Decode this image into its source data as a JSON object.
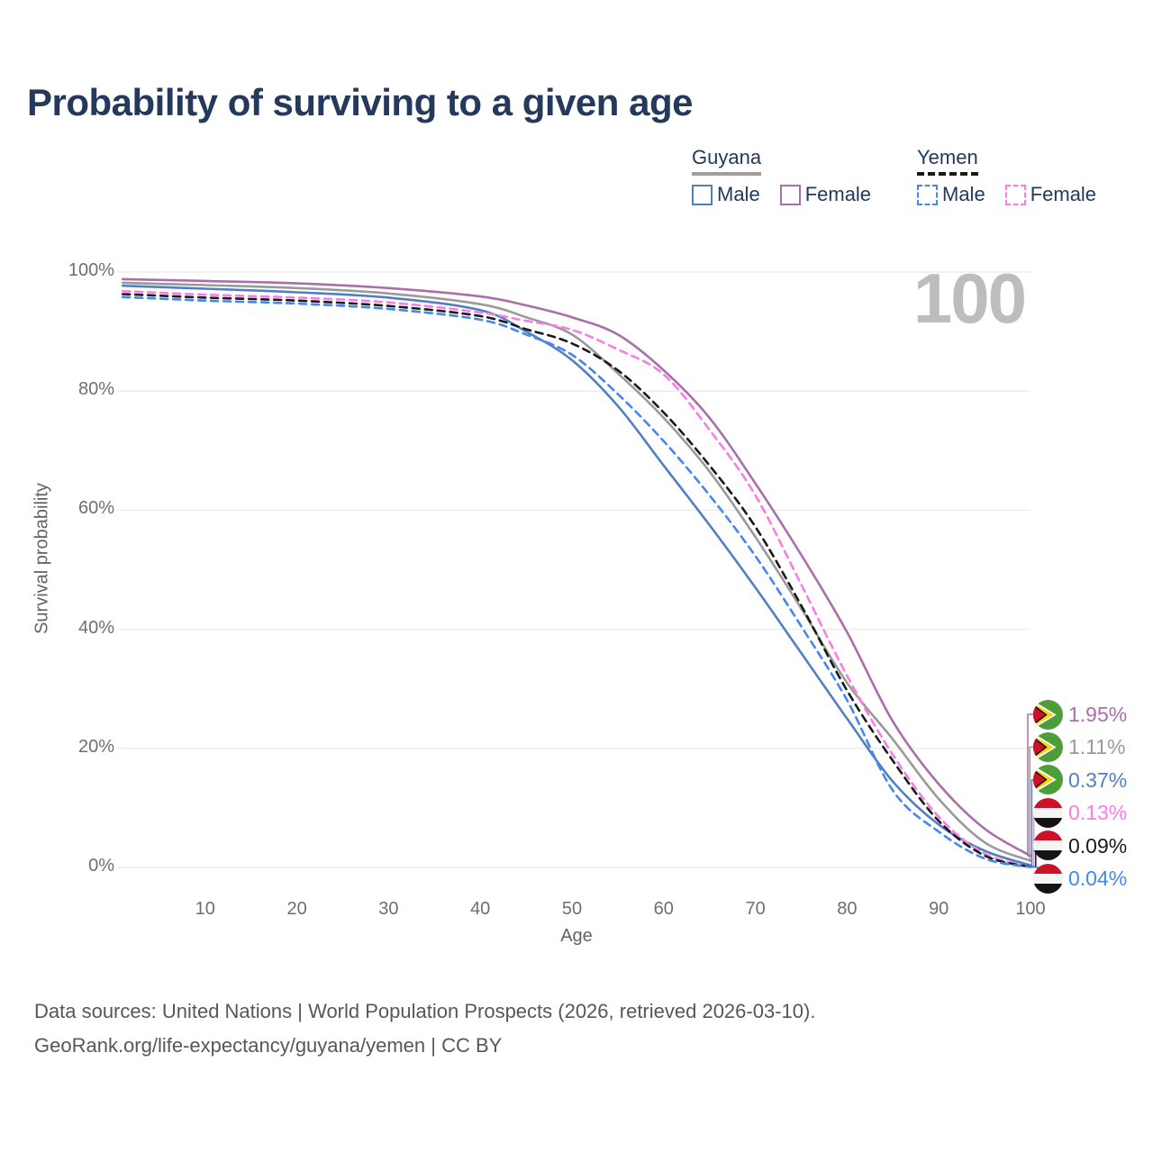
{
  "title": "Probability of surviving to a given age",
  "watermark_age": "100",
  "legend": {
    "groups": [
      {
        "country": "Guyana",
        "underline_style": "solid",
        "underline_color": "#9e9e9e",
        "items": [
          {
            "label": "Male",
            "color": "#5180c1",
            "dashed": false
          },
          {
            "label": "Female",
            "color": "#a96fa9",
            "dashed": false
          }
        ]
      },
      {
        "country": "Yemen",
        "underline_style": "dashed",
        "underline_color": "#1a1a1a",
        "items": [
          {
            "label": "Male",
            "color": "#4387ef",
            "dashed": true
          },
          {
            "label": "Female",
            "color": "#fb7ce5",
            "dashed": true
          }
        ]
      }
    ]
  },
  "chart_data": {
    "type": "line",
    "title": "Probability of surviving to a given age",
    "xlabel": "Age",
    "ylabel": "Survival probability",
    "xlim": [
      0,
      100
    ],
    "ylim": [
      0,
      100
    ],
    "grid": "horizontal",
    "x_ticks": [
      10,
      20,
      30,
      40,
      50,
      60,
      70,
      80,
      90,
      100
    ],
    "y_ticks": [
      {
        "value": 0,
        "label": "0%"
      },
      {
        "value": 20,
        "label": "20%"
      },
      {
        "value": 40,
        "label": "40%"
      },
      {
        "value": 60,
        "label": "60%"
      },
      {
        "value": 80,
        "label": "80%"
      },
      {
        "value": 100,
        "label": "100%"
      }
    ],
    "ages": [
      1,
      10,
      20,
      30,
      40,
      45,
      50,
      55,
      60,
      65,
      70,
      75,
      80,
      85,
      90,
      95,
      100
    ],
    "series": [
      {
        "name": "Guyana Female",
        "country": "Guyana",
        "sex": "Female",
        "flag": "guyana",
        "color": "#a96fa9",
        "dashed": false,
        "end_label": "1.95%",
        "values": [
          98.8,
          98.5,
          98.1,
          97.3,
          95.9,
          94.4,
          92.4,
          89.5,
          83.5,
          75.5,
          64.5,
          52.5,
          39.5,
          24.5,
          14.0,
          6.5,
          1.95
        ]
      },
      {
        "name": "Guyana",
        "country": "Guyana",
        "sex": "Both",
        "flag": "guyana",
        "color": "#9a9a9a",
        "dashed": false,
        "end_label": "1.11%",
        "values": [
          98.2,
          97.8,
          97.3,
          96.4,
          94.6,
          92.4,
          89.5,
          83.0,
          75.5,
          66.5,
          55.5,
          43.5,
          31.0,
          21.5,
          11.5,
          4.2,
          1.11
        ]
      },
      {
        "name": "Guyana Male",
        "country": "Guyana",
        "sex": "Male",
        "flag": "guyana",
        "color": "#5180c1",
        "dashed": false,
        "end_label": "0.37%",
        "values": [
          97.7,
          97.2,
          96.6,
          95.7,
          93.6,
          90.0,
          85.2,
          77.5,
          67.5,
          57.5,
          47.0,
          36.0,
          25.0,
          14.4,
          7.2,
          2.8,
          0.37
        ]
      },
      {
        "name": "Yemen Female",
        "country": "Yemen",
        "sex": "Female",
        "flag": "yemen",
        "color": "#fb7ce5",
        "dashed": true,
        "end_label": "0.13%",
        "values": [
          96.8,
          96.2,
          95.7,
          94.9,
          93.2,
          91.8,
          90.3,
          87.0,
          82.8,
          73.5,
          62.5,
          47.5,
          32.2,
          18.9,
          8.5,
          2.3,
          0.13
        ]
      },
      {
        "name": "Yemen",
        "country": "Yemen",
        "sex": "Both",
        "flag": "yemen",
        "color": "#1a1a1a",
        "dashed": true,
        "end_label": "0.09%",
        "values": [
          96.3,
          95.7,
          95.2,
          94.3,
          92.6,
          90.4,
          88.0,
          83.5,
          76.4,
          67.5,
          57.2,
          44.0,
          29.7,
          17.9,
          7.8,
          2.0,
          0.09
        ]
      },
      {
        "name": "Yemen Male",
        "country": "Yemen",
        "sex": "Male",
        "flag": "yemen",
        "color": "#4387ef",
        "dashed": true,
        "end_label": "0.04%",
        "values": [
          95.8,
          95.2,
          94.7,
          93.8,
          92.0,
          89.5,
          86.1,
          79.5,
          71.6,
          62.5,
          52.3,
          40.5,
          28.1,
          12.9,
          6.0,
          1.5,
          0.04
        ]
      }
    ]
  },
  "flags": {
    "guyana": {
      "green": "#4d9e3a",
      "white": "#ffffff",
      "yellow": "#fdd116",
      "black": "#141414",
      "red": "#ce1126"
    },
    "yemen": {
      "red": "#ce1126",
      "white": "#f4f4f4",
      "black": "#141414"
    }
  },
  "footer": {
    "line1": "Data sources: United Nations | World Population Prospects (2026, retrieved 2026-03-10).",
    "line2": "GeoRank.org/life-expectancy/guyana/yemen | CC BY"
  }
}
